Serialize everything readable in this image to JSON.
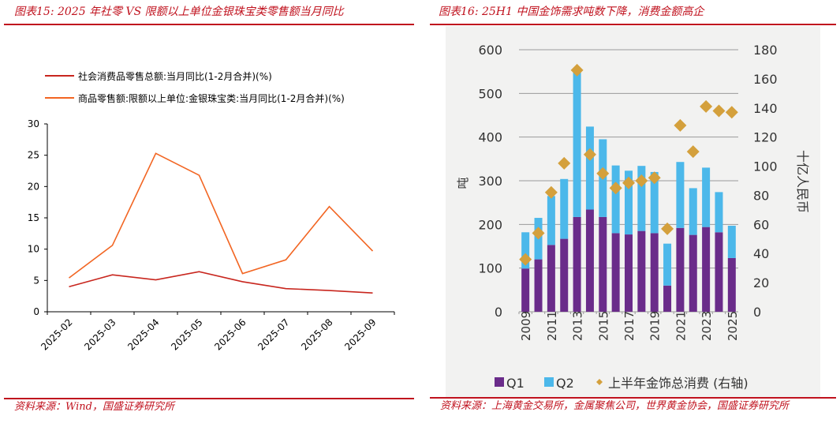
{
  "left": {
    "title": "图表15:  2025 年社零 VS 限额以上单位金银珠宝类零售额当月同比",
    "source": "资料来源：Wind，国盛证券研究所"
  },
  "right": {
    "title": "图表16:  25H1 中国金饰需求吨数下降，消费金额高企",
    "source": "资料来源：上海黄金交易所，金属聚焦公司，世界黄金协会，国盛证券研究所"
  },
  "chart_data": [
    {
      "type": "line",
      "categories": [
        "2025-02",
        "2025-03",
        "2025-04",
        "2025-05",
        "2025-06",
        "2025-07",
        "2025-08",
        "2025-09"
      ],
      "series": [
        {
          "name": "社会消费品零售总额:当月同比(1-2月合并)(%)",
          "color": "#c8261e",
          "values": [
            4.0,
            5.9,
            5.1,
            6.4,
            4.8,
            3.7,
            3.4,
            3.0
          ]
        },
        {
          "name": "商品零售额:限额以上单位:金银珠宝类:当月同比(1-2月合并)(%)",
          "color": "#f26522",
          "values": [
            5.4,
            10.6,
            25.3,
            21.8,
            6.1,
            8.3,
            16.8,
            9.7
          ]
        }
      ],
      "ylim": [
        0,
        30
      ],
      "yticks": [
        "0",
        "5",
        "10",
        "15",
        "20",
        "25",
        "30"
      ],
      "grid": false,
      "legend": "top"
    },
    {
      "type": "bar",
      "stacked": true,
      "categories": [
        "2009",
        "2010",
        "2011",
        "2012",
        "2013",
        "2014",
        "2015",
        "2016",
        "2017",
        "2018",
        "2019",
        "2020",
        "2021",
        "2022",
        "2023",
        "2024",
        "2025"
      ],
      "tick_labels": [
        "2009",
        "2011",
        "2013",
        "2015",
        "2017",
        "2019",
        "2021",
        "2023",
        "2025"
      ],
      "series": [
        {
          "name": "Q1",
          "color": "#6a2c8a",
          "axis": "left",
          "values": [
            99,
            120,
            153,
            167,
            217,
            234,
            217,
            180,
            177,
            185,
            180,
            60,
            192,
            176,
            194,
            182,
            123
          ]
        },
        {
          "name": "Q2",
          "color": "#4cb8ea",
          "axis": "left",
          "values": [
            83,
            95,
            112,
            137,
            335,
            190,
            178,
            155,
            146,
            149,
            140,
            96,
            151,
            107,
            136,
            92,
            74
          ]
        },
        {
          "name": "上半年金饰总消费 (右轴)",
          "type": "scatter",
          "marker": "diamond",
          "color": "#d4a03c",
          "axis": "right",
          "values": [
            36,
            54,
            82,
            102,
            166,
            108,
            95,
            85,
            88.5,
            90,
            92,
            57,
            128,
            110,
            141,
            138,
            137
          ]
        }
      ],
      "ylabel": "吨",
      "y2label": "十亿人民币",
      "ylim": [
        0,
        600
      ],
      "y2lim": [
        0,
        180
      ],
      "yticks": [
        "0",
        "100",
        "200",
        "300",
        "400",
        "500",
        "600"
      ],
      "y2ticks": [
        "0",
        "20",
        "40",
        "60",
        "80",
        "100",
        "120",
        "140",
        "160",
        "180"
      ],
      "grid": true,
      "legend": "bottom"
    }
  ]
}
